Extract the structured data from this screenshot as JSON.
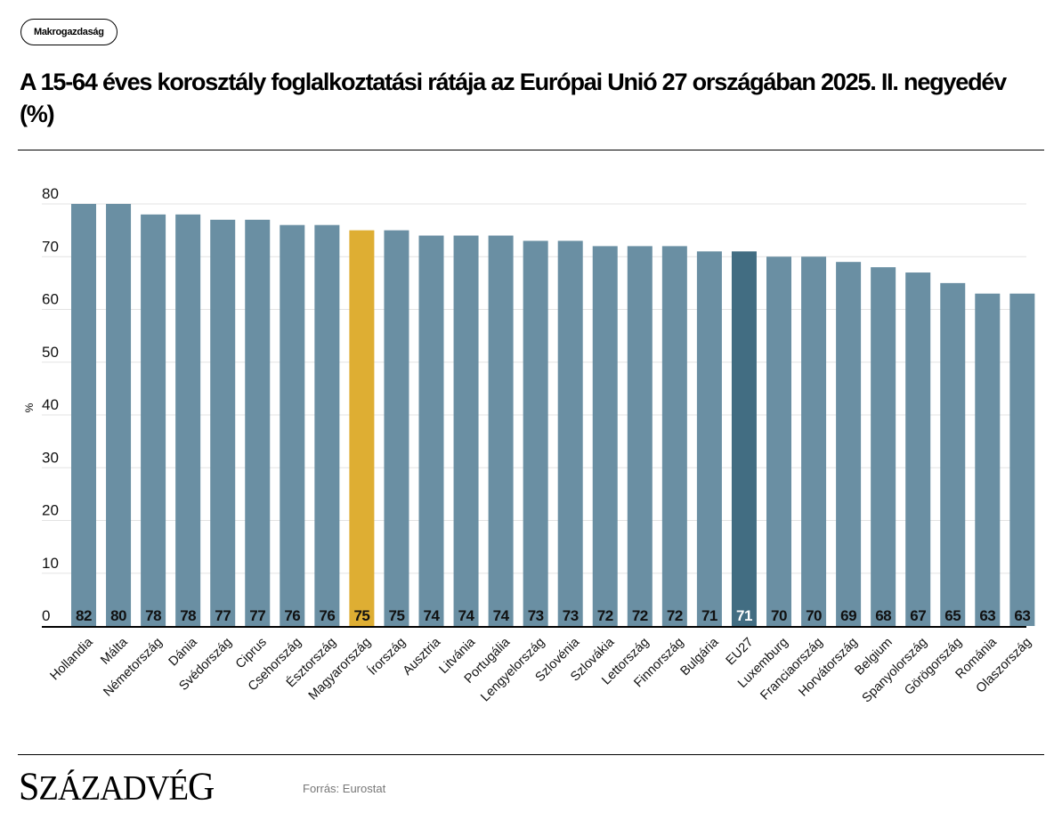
{
  "category_tag": "Makrogazdaság",
  "title": "A 15-64 éves korosztály foglalkoztatási rátája az Európai Unió 27 országában 2025. II. negyedév (%)",
  "footer": {
    "logo_first": "S",
    "logo_rest": "ZÁZADVÉ",
    "logo_last": "G",
    "source": "Forrás: Eurostat"
  },
  "colors": {
    "default_bar": "#6a8fa3",
    "highlight_hungary": "#deae33",
    "highlight_eu27": "#426d82",
    "grid": "#e3e3e3",
    "axis": "#000000"
  },
  "chart_data": {
    "type": "bar",
    "title": "A 15-64 éves korosztály foglalkoztatási rátája az Európai Unió 27 országában 2025. II. negyedév (%)",
    "xlabel": "",
    "ylabel": "%",
    "ylim": [
      0,
      80
    ],
    "yticks": [
      0,
      10,
      20,
      30,
      40,
      50,
      60,
      70,
      80
    ],
    "grid": true,
    "legend": "none",
    "categories": [
      "Hollandia",
      "Málta",
      "Németország",
      "Dánia",
      "Svédország",
      "Ciprus",
      "Csehország",
      "Észtország",
      "Magyarország",
      "Írország",
      "Ausztria",
      "Litvánia",
      "Portugália",
      "Lengyelország",
      "Szlovénia",
      "Szlovákia",
      "Lettország",
      "Finnország",
      "Bulgária",
      "EU27",
      "Luxemburg",
      "Franciaország",
      "Horvátország",
      "Belgium",
      "Spanyolország",
      "Görögország",
      "Románia",
      "Olaszország"
    ],
    "values": [
      82,
      80,
      78,
      78,
      77,
      77,
      76,
      76,
      75,
      75,
      74,
      74,
      74,
      73,
      73,
      72,
      72,
      72,
      71,
      71,
      70,
      70,
      69,
      68,
      67,
      65,
      63,
      63
    ],
    "highlights": {
      "Magyarország": "highlight_hungary",
      "EU27": "highlight_eu27"
    },
    "data_labels": "bottom-inside"
  }
}
